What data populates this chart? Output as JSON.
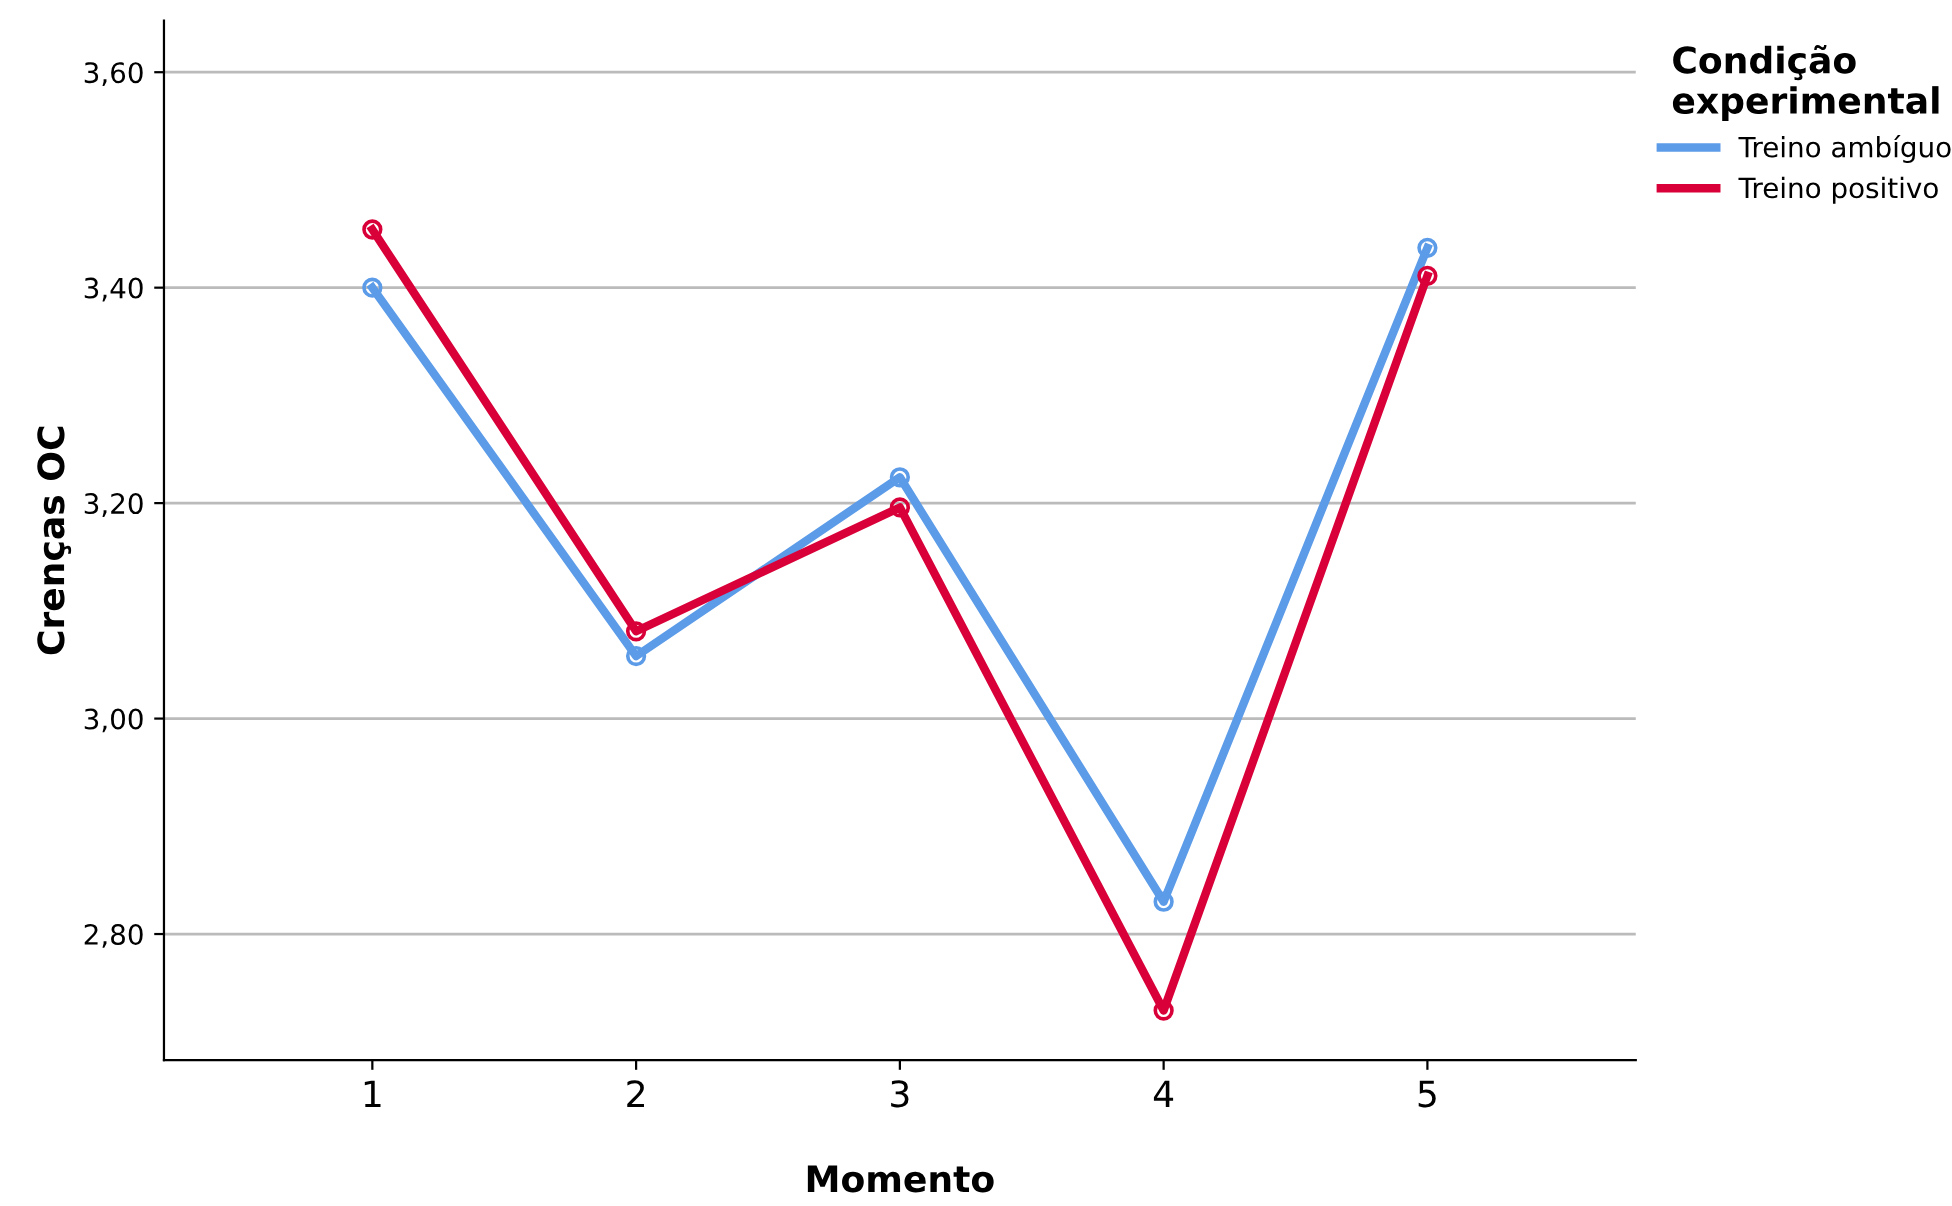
{
  "chart_data": {
    "type": "line",
    "xlabel": "Momento",
    "ylabel": "Crenças OC",
    "categories": [
      "1",
      "2",
      "3",
      "4",
      "5"
    ],
    "series": [
      {
        "name": "Treino ambíguo",
        "color": "#5b9be8",
        "values": [
          3.4,
          3.058,
          3.224,
          2.83,
          3.437
        ]
      },
      {
        "name": "Treino positivo",
        "color": "#d9003a",
        "values": [
          3.454,
          3.081,
          3.196,
          2.729,
          3.411
        ]
      }
    ],
    "ylim": [
      2.683,
      3.648
    ],
    "yticks": [
      {
        "value": 2.8,
        "label": "2,80"
      },
      {
        "value": 3.0,
        "label": "3,00"
      },
      {
        "value": 3.2,
        "label": "3,20"
      },
      {
        "value": 3.4,
        "label": "3,40"
      },
      {
        "value": 3.6,
        "label": "3,60"
      }
    ],
    "grid": "y",
    "legend": "top right",
    "legend_title": "Condição\nexperimental",
    "marker": "circle",
    "line_style": "solid"
  }
}
